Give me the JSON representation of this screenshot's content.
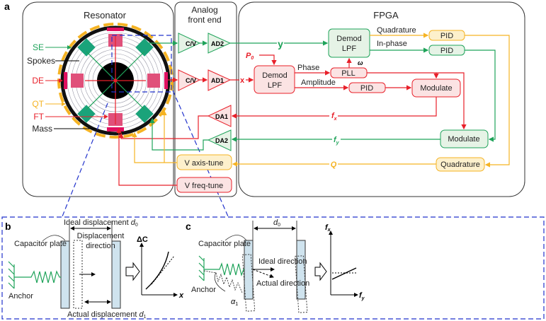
{
  "panel_labels": {
    "a": "a",
    "b": "b",
    "c": "c"
  },
  "colors": {
    "green": "#1fa35a",
    "red": "#e8202a",
    "yellow": "#f5b323",
    "blue": "#2233cc",
    "plate": "#cfe3ee"
  },
  "resonator": {
    "title": "Resonator",
    "labels": {
      "se": "SE",
      "spokes": "Spokes",
      "de": "DE",
      "qt": "QT",
      "ft": "FT",
      "mass": "Mass"
    }
  },
  "analog": {
    "title_line1": "Analog",
    "title_line2": "front end",
    "cv_top": "C/V",
    "ad2": "AD2",
    "cv_bottom": "C/V",
    "ad1": "AD1",
    "da1": "DA1",
    "da2": "DA2",
    "v_axis_tune": "V axis-tune",
    "v_freq_tune": "V freq-tune"
  },
  "fpga": {
    "title": "FPGA",
    "signal_y": "y",
    "signal_x": "x",
    "p0": "P",
    "p0_sub": "0",
    "demod_green_l1": "Demod",
    "demod_green_l2": "LPF",
    "demod_red_l1": "Demod",
    "demod_red_l2": "LPF",
    "quadrature_label": "Quadrature",
    "inphase_label": "In-phase",
    "pid_yellow": "PID",
    "pid_green": "PID",
    "phase_label": "Phase",
    "amplitude_label": "Amplitude",
    "pll": "PLL",
    "omega": "ω",
    "pid_red": "PID",
    "modulate_red": "Modulate",
    "modulate_green": "Modulate",
    "quadrature_box": "Quadrature",
    "fx": "f",
    "fx_sub": "x",
    "fy": "f",
    "fy_sub": "y",
    "q": "Q"
  },
  "panel_b": {
    "ideal_displacement": "Ideal displacement ",
    "d0": "d",
    "d0_sub": "0",
    "capacitor_plate": "Capacitor plate",
    "displacement_l1": "Displacement",
    "displacement_l2": "direction",
    "anchor": "Anchor",
    "actual_displacement": "Actual displacement ",
    "d1": "d",
    "d1_sub": "1",
    "y_axis": "ΔC",
    "x_axis": "x"
  },
  "panel_c": {
    "d0": "d",
    "d0_sub": "0",
    "capacitor_plate": "Capacitor plate",
    "ideal_direction": "Ideal direction",
    "actual_direction": "Actual direction",
    "anchor": "Anchor",
    "alpha": "α",
    "alpha_sub": "1",
    "y_axis": "f",
    "y_axis_sub": "x",
    "x_axis": "f",
    "x_axis_sub": "y"
  }
}
